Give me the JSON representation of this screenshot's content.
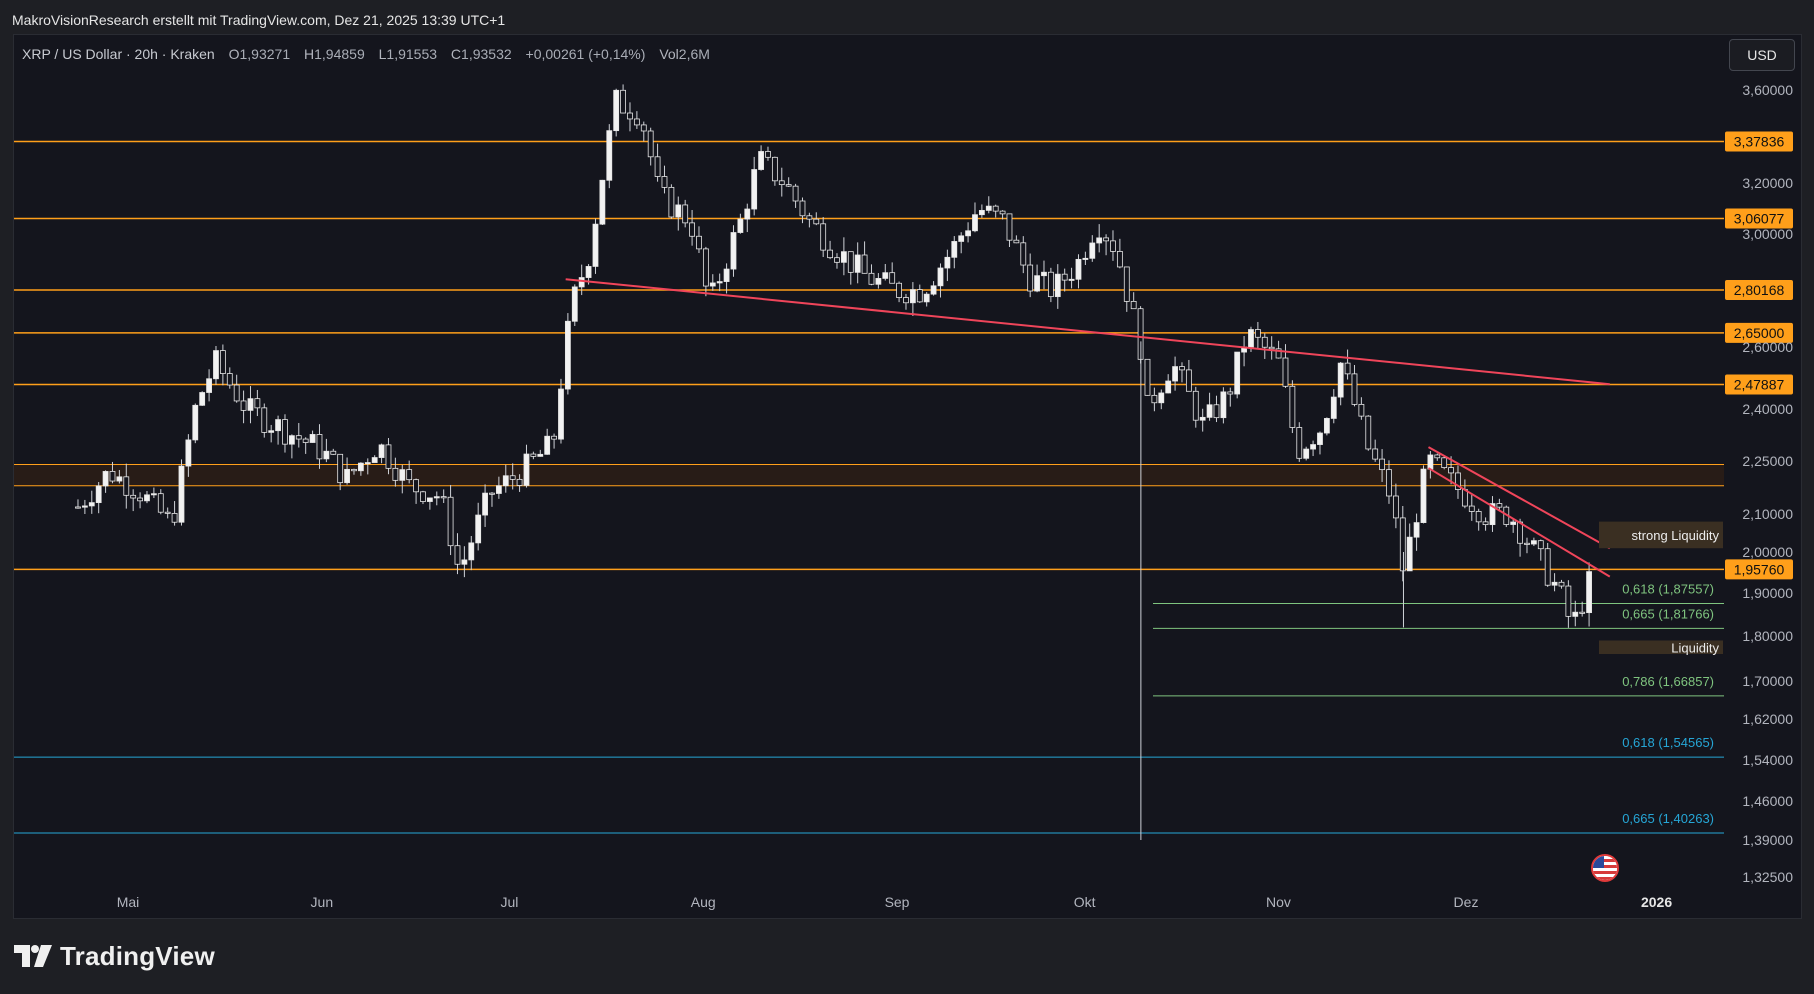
{
  "header": {
    "attribution": "MakroVisionResearch erstellt mit TradingView.com, Dez 21, 2025 13:39 UTC+1"
  },
  "legend": {
    "symbol": "XRP / US Dollar · 20h · Kraken",
    "open_label": "O",
    "open": "1,93271",
    "high_label": "H",
    "high": "1,94859",
    "low_label": "L",
    "low": "1,91553",
    "close_label": "C",
    "close": "1,93532",
    "change": "+0,00261 (+0,14%)",
    "vol_label": "Vol",
    "vol": "2,6M"
  },
  "currency_button": "USD",
  "brand": "TradingView",
  "colors": {
    "background": "#14151d",
    "candle": "#e6e6e6",
    "resistance": "#ff9f1a",
    "trendline": "#f0455a",
    "fib_green": "#7fc47f",
    "fib_blue": "#26a6d6",
    "liquidity_box": "#3a2f22"
  },
  "chart_data": {
    "type": "candlestick",
    "symbol": "XRP / US Dollar",
    "interval": "20h",
    "exchange": "Kraken",
    "ylim": [
      1.3,
      3.7
    ],
    "y_ticks": [
      "3,60000",
      "3,20000",
      "3,00000",
      "2,60000",
      "2,40000",
      "2,25000",
      "2,10000",
      "2,00000",
      "1,90000",
      "1,80000",
      "1,70000",
      "1,62000",
      "1,54000",
      "1,46000",
      "1,39000",
      "1,32500"
    ],
    "x_ticks": [
      "Mai",
      "Jun",
      "Jul",
      "Aug",
      "Sep",
      "Okt",
      "Nov",
      "Dez",
      "2026"
    ],
    "close_path": [
      [
        "Apr 23",
        2.12
      ],
      [
        "Apr 28",
        2.22
      ],
      [
        "Mai 3",
        2.16
      ],
      [
        "Mai 8",
        2.07
      ],
      [
        "Mai 12",
        2.42
      ],
      [
        "Mai 15",
        2.55
      ],
      [
        "Mai 20",
        2.4
      ],
      [
        "Mai 25",
        2.35
      ],
      [
        "Jun 1",
        2.28
      ],
      [
        "Jun 5",
        2.2
      ],
      [
        "Jun 10",
        2.3
      ],
      [
        "Jun 15",
        2.18
      ],
      [
        "Jun 20",
        2.15
      ],
      [
        "Jun 23",
        1.95
      ],
      [
        "Jun 28",
        2.16
      ],
      [
        "Jul 3",
        2.22
      ],
      [
        "Jul 8",
        2.3
      ],
      [
        "Jul 11",
        2.75
      ],
      [
        "Jul 14",
        2.95
      ],
      [
        "Jul 18",
        3.55
      ],
      [
        "Jul 22",
        3.5
      ],
      [
        "Jul 25",
        3.15
      ],
      [
        "Jul 30",
        3.05
      ],
      [
        "Aug 2",
        2.75
      ],
      [
        "Aug 7",
        3.05
      ],
      [
        "Aug 10",
        3.3
      ],
      [
        "Aug 14",
        3.2
      ],
      [
        "Aug 18",
        3.05
      ],
      [
        "Aug 22",
        2.95
      ],
      [
        "Aug 27",
        2.85
      ],
      [
        "Sep 1",
        2.8
      ],
      [
        "Sep 5",
        2.8
      ],
      [
        "Sep 10",
        2.95
      ],
      [
        "Sep 14",
        3.1
      ],
      [
        "Sep 18",
        3.05
      ],
      [
        "Sep 22",
        2.85
      ],
      [
        "Sep 26",
        2.8
      ],
      [
        "Sep 30",
        2.9
      ],
      [
        "Okt 3",
        3.05
      ],
      [
        "Okt 6",
        2.95
      ],
      [
        "Okt 10",
        2.6
      ],
      [
        "Okt 11",
        2.4
      ],
      [
        "Okt 15",
        2.55
      ],
      [
        "Okt 20",
        2.35
      ],
      [
        "Okt 24",
        2.45
      ],
      [
        "Okt 27",
        2.65
      ],
      [
        "Nov 1",
        2.55
      ],
      [
        "Nov 4",
        2.28
      ],
      [
        "Nov 8",
        2.35
      ],
      [
        "Nov 11",
        2.55
      ],
      [
        "Nov 15",
        2.3
      ],
      [
        "Nov 19",
        2.15
      ],
      [
        "Nov 21",
        1.95
      ],
      [
        "Nov 25",
        2.25
      ],
      [
        "Dez 1",
        2.15
      ],
      [
        "Dez 4",
        2.1
      ],
      [
        "Dez 8",
        2.1
      ],
      [
        "Dez 12",
        2.0
      ],
      [
        "Dez 16",
        1.9
      ],
      [
        "Dez 18",
        1.82
      ],
      [
        "Dez 21",
        1.93532
      ]
    ],
    "annotations": {
      "resistance_levels": [
        {
          "label": "3,37836",
          "value": 3.37836
        },
        {
          "label": "3,06077",
          "value": 3.06077
        },
        {
          "label": "2,80168",
          "value": 2.80168
        },
        {
          "label": "2,65000",
          "value": 2.65
        },
        {
          "label": "2,47887",
          "value": 2.47887
        },
        {
          "label": "1,95760",
          "value": 1.9576
        }
      ],
      "zone": {
        "from": 2.18,
        "to": 2.24
      },
      "fib_levels": [
        {
          "label": "0,618 (1,87557)",
          "value": 1.87557,
          "color": "#7fc47f"
        },
        {
          "label": "0,665 (1,81766)",
          "value": 1.81766,
          "color": "#7fc47f"
        },
        {
          "label": "0,786 (1,66857)",
          "value": 1.66857,
          "color": "#7fc47f"
        },
        {
          "label": "0,618 (1,54565)",
          "value": 1.54565,
          "color": "#26a6d6"
        },
        {
          "label": "0,665 (1,40263)",
          "value": 1.40263,
          "color": "#26a6d6"
        }
      ],
      "boxes": [
        {
          "label": "strong Liquidity",
          "from": 2.01,
          "to": 2.08
        },
        {
          "label": "Liquidity",
          "from": 1.76,
          "to": 1.79
        }
      ],
      "trendlines": [
        {
          "from": [
            "Jul 10",
            2.84
          ],
          "to": [
            "Dez 24",
            2.48
          ]
        },
        {
          "from": [
            "Nov 25",
            2.29
          ],
          "to": [
            "Dez 24",
            2.01
          ]
        },
        {
          "from": [
            "Nov 25",
            2.23
          ],
          "to": [
            "Dez 24",
            1.94
          ]
        }
      ]
    }
  }
}
